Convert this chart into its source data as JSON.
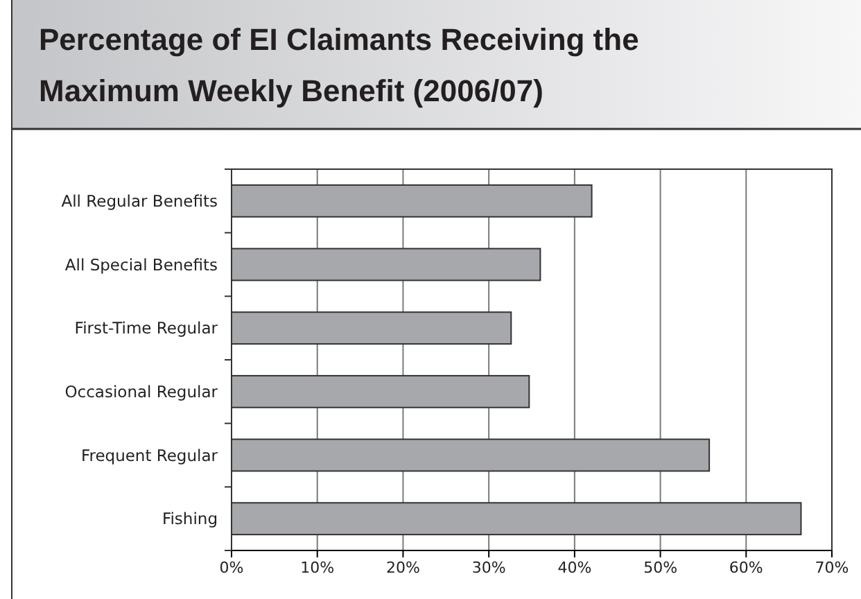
{
  "chart_data": {
    "type": "bar",
    "orientation": "horizontal",
    "title": "Percentage of EI Claimants Receiving the Maximum Weekly Benefit (2006/07)",
    "categories": [
      "All Regular Benefits",
      "All Special Benefits",
      "First-Time Regular",
      "Occasional Regular",
      "Frequent Regular",
      "Fishing"
    ],
    "values": [
      42.0,
      36.0,
      32.6,
      34.7,
      55.7,
      66.4
    ],
    "color": "#a7a8ab",
    "xlim": [
      0,
      70
    ],
    "xticks": [
      {
        "value": 0,
        "label": "0%"
      },
      {
        "value": 10,
        "label": "10%"
      },
      {
        "value": 20,
        "label": "20%"
      },
      {
        "value": 30,
        "label": "30%"
      },
      {
        "value": 40,
        "label": "40%"
      },
      {
        "value": 50,
        "label": "50%"
      },
      {
        "value": 60,
        "label": "60%"
      },
      {
        "value": 70,
        "label": "70%"
      }
    ],
    "grid": "x"
  }
}
